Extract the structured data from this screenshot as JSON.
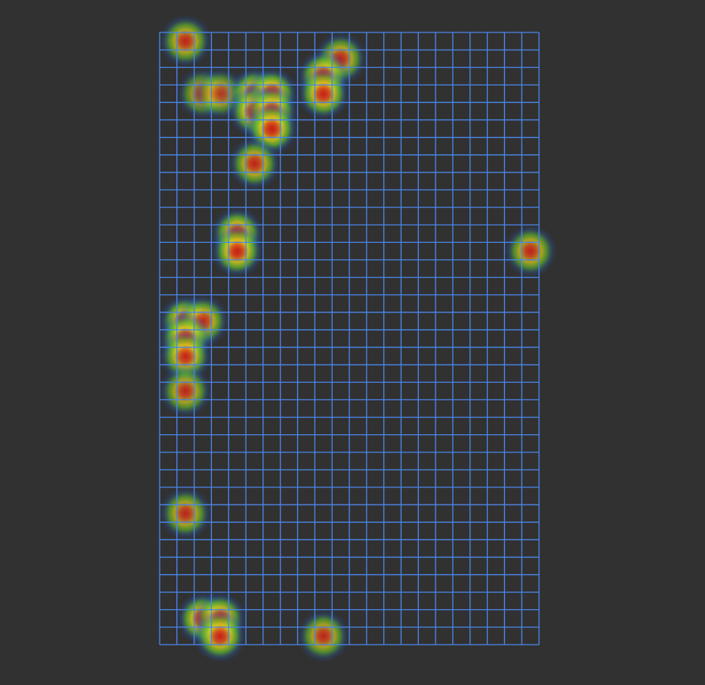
{
  "view": {
    "background_color": "#313131",
    "grid_line_color": "#4a86e8"
  },
  "grid": {
    "columns": 22,
    "rows": 35
  },
  "heat_spots": [
    {
      "col": 1,
      "row": 0,
      "intensity": 0.55
    },
    {
      "col": 2,
      "row": 3,
      "intensity": 0.3
    },
    {
      "col": 3,
      "row": 3,
      "intensity": 0.3
    },
    {
      "col": 5,
      "row": 3,
      "intensity": 0.85
    },
    {
      "col": 6,
      "row": 3,
      "intensity": 0.85
    },
    {
      "col": 5,
      "row": 4,
      "intensity": 0.75
    },
    {
      "col": 6,
      "row": 4,
      "intensity": 0.75
    },
    {
      "col": 6,
      "row": 5,
      "intensity": 0.85
    },
    {
      "col": 5,
      "row": 7,
      "intensity": 0.6
    },
    {
      "col": 10,
      "row": 1,
      "intensity": 0.55
    },
    {
      "col": 9,
      "row": 2,
      "intensity": 0.75
    },
    {
      "col": 9,
      "row": 3,
      "intensity": 0.75
    },
    {
      "col": 4,
      "row": 11,
      "intensity": 0.8
    },
    {
      "col": 4,
      "row": 12,
      "intensity": 0.8
    },
    {
      "col": 21,
      "row": 12,
      "intensity": 0.55
    },
    {
      "col": 1,
      "row": 16,
      "intensity": 0.9
    },
    {
      "col": 2,
      "row": 16,
      "intensity": 0.6
    },
    {
      "col": 1,
      "row": 17,
      "intensity": 0.85
    },
    {
      "col": 1,
      "row": 18,
      "intensity": 0.7
    },
    {
      "col": 1,
      "row": 20,
      "intensity": 0.5
    },
    {
      "col": 1,
      "row": 27,
      "intensity": 0.5
    },
    {
      "col": 2,
      "row": 33,
      "intensity": 0.8
    },
    {
      "col": 3,
      "row": 33,
      "intensity": 0.75
    },
    {
      "col": 3,
      "row": 34,
      "intensity": 0.75
    },
    {
      "col": 9,
      "row": 34,
      "intensity": 0.5
    }
  ]
}
